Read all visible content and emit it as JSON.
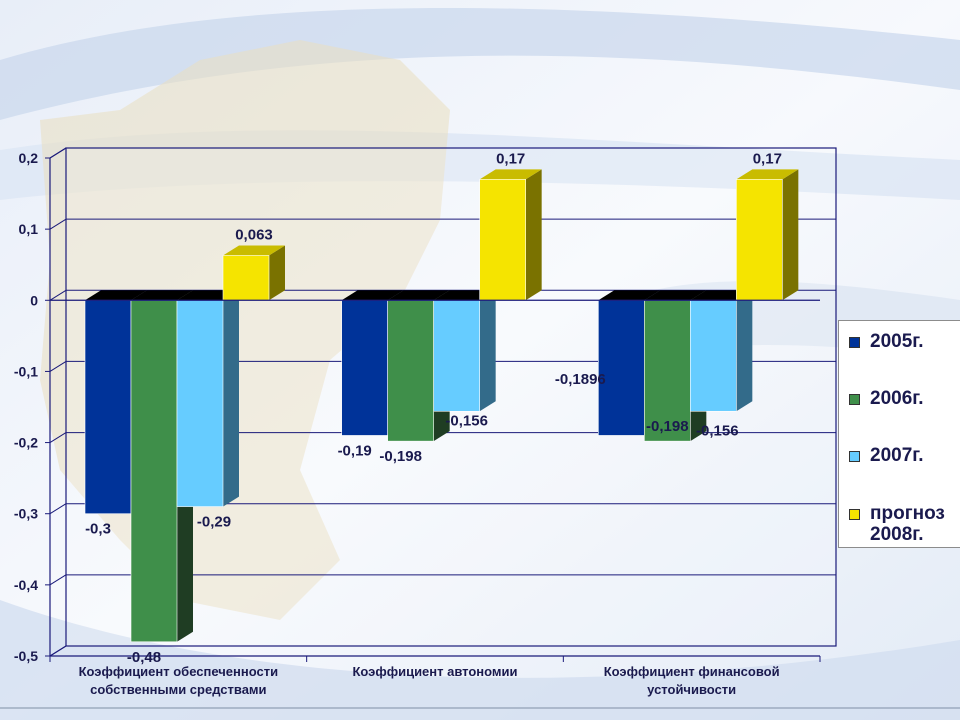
{
  "chart_data": {
    "type": "bar",
    "categories": [
      "Коэффициент обеспеченности собственными средствами",
      "Коэффициент автономии",
      "Коэффициент финансовой устойчивости"
    ],
    "category_lines": [
      [
        "Коэффициент обеспеченности",
        "собственными средствами"
      ],
      [
        "Коэффициент автономии"
      ],
      [
        "Коэффициент финансовой",
        "устойчивости"
      ]
    ],
    "series": [
      {
        "name": "2005г.",
        "values": [
          -0.3,
          -0.19,
          -0.19
        ],
        "labels": [
          "-0,3",
          "-0,19",
          "-0,1896"
        ],
        "color": "#003399",
        "side": "#001a66",
        "top": "#000000"
      },
      {
        "name": "2006г.",
        "values": [
          -0.48,
          -0.198,
          -0.198
        ],
        "labels": [
          "-0,48",
          "-0,198",
          "-0,198"
        ],
        "color": "#3f8f4a",
        "side": "#1f3d23",
        "top": "#000000"
      },
      {
        "name": "2007г.",
        "values": [
          -0.29,
          -0.156,
          -0.156
        ],
        "labels": [
          "-0,29",
          "-0,156",
          "-0,156"
        ],
        "color": "#66ccff",
        "side": "#336b8a",
        "top": "#000000"
      },
      {
        "name": "прогноз\n2008г.",
        "values": [
          0.063,
          0.17,
          0.17
        ],
        "labels": [
          "0,063",
          "0,17",
          "0,17"
        ],
        "color": "#f5e400",
        "side": "#7a7200",
        "top": "#c9bc00"
      }
    ],
    "yticks": [
      "0,2",
      "0,1",
      "0",
      "-0,1",
      "-0,2",
      "-0,3",
      "-0,4",
      "-0,5"
    ],
    "ylim": [
      -0.5,
      0.2
    ],
    "grid": true,
    "legend_position": "right",
    "xlabel": "",
    "ylabel": "",
    "title": ""
  }
}
